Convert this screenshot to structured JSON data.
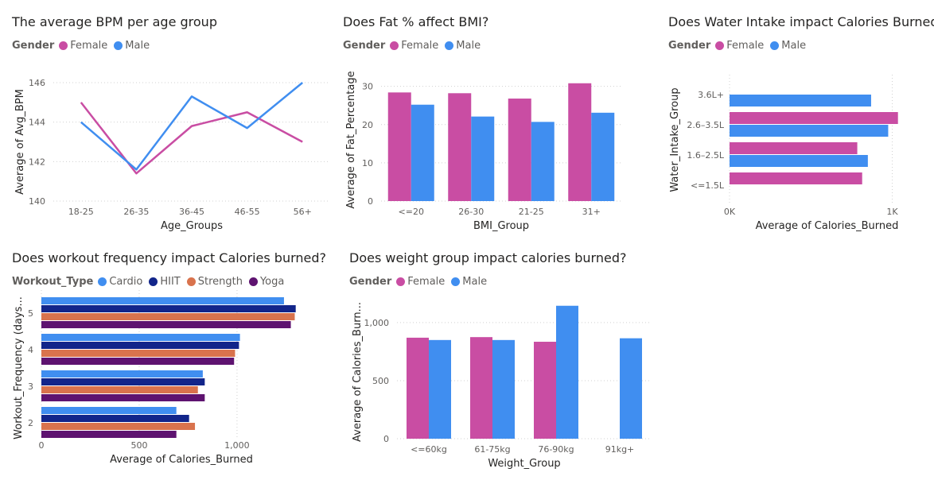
{
  "colors": {
    "female": "#c94da3",
    "male": "#408ef0",
    "cardio": "#408ef0",
    "hiit": "#12258a",
    "strength": "#d9734d",
    "yoga": "#5e1370"
  },
  "chart_data": [
    {
      "id": "bpm",
      "type": "line",
      "title": "The average BPM per age group",
      "legend": {
        "title": "Gender",
        "items": [
          {
            "name": "Female",
            "color": "#c94da3"
          },
          {
            "name": "Male",
            "color": "#408ef0"
          }
        ]
      },
      "xlabel": "Age_Groups",
      "ylabel": "Average of Avg_BPM",
      "categories": [
        "18-25",
        "26-35",
        "36-45",
        "46-55",
        "56+"
      ],
      "ylim": [
        140,
        146
      ],
      "yticks": [
        "140",
        "142",
        "144",
        "146"
      ],
      "series": [
        {
          "name": "Female",
          "values": [
            145,
            141.4,
            143.8,
            144.5,
            143
          ]
        },
        {
          "name": "Male",
          "values": [
            144,
            141.6,
            145.3,
            143.7,
            146
          ]
        }
      ]
    },
    {
      "id": "fat",
      "type": "bar",
      "title": "Does Fat % affect BMI?",
      "legend": {
        "title": "Gender",
        "items": [
          {
            "name": "Female",
            "color": "#c94da3"
          },
          {
            "name": "Male",
            "color": "#408ef0"
          }
        ]
      },
      "xlabel": "BMI_Group",
      "ylabel": "Average of Fat_Percentage",
      "categories": [
        "<=20",
        "26-30",
        "21-25",
        "31+"
      ],
      "ylim": [
        0,
        32
      ],
      "yticks": [
        "0",
        "10",
        "20",
        "30"
      ],
      "series": [
        {
          "name": "Female",
          "values": [
            28.4,
            28.2,
            26.8,
            30.8
          ]
        },
        {
          "name": "Male",
          "values": [
            25.2,
            22.1,
            20.7,
            23.1
          ]
        }
      ]
    },
    {
      "id": "water",
      "type": "bar",
      "orientation": "horizontal",
      "title": "Does Water Intake impact Calories Burned?",
      "legend": {
        "title": "Gender",
        "items": [
          {
            "name": "Female",
            "color": "#c94da3"
          },
          {
            "name": "Male",
            "color": "#408ef0"
          }
        ]
      },
      "xlabel": "Average of Calories_Burned",
      "ylabel": "Water_Intake_Group",
      "categories": [
        "3.6L+",
        "2.6–3.5L",
        "1.6–2.5L",
        "<=1.5L"
      ],
      "xlim": [
        0,
        1100
      ],
      "xticks": [
        "0K",
        "1K"
      ],
      "series": [
        {
          "name": "Female",
          "values": [
            null,
            1035,
            785,
            815
          ]
        },
        {
          "name": "Male",
          "values": [
            870,
            975,
            850,
            null
          ]
        }
      ]
    },
    {
      "id": "workout",
      "type": "bar",
      "orientation": "horizontal",
      "title": "Does workout frequency impact Calories burned?",
      "legend": {
        "title": "Workout_Type",
        "items": [
          {
            "name": "Cardio",
            "color": "#408ef0"
          },
          {
            "name": "HIIT",
            "color": "#12258a"
          },
          {
            "name": "Strength",
            "color": "#d9734d"
          },
          {
            "name": "Yoga",
            "color": "#5e1370"
          }
        ]
      },
      "xlabel": "Average of Calories_Burned",
      "ylabel": "Workout_Frequency (days...",
      "categories": [
        "5",
        "4",
        "3",
        "2"
      ],
      "xlim": [
        0,
        1350
      ],
      "xticks": [
        "0",
        "500",
        "1,000"
      ],
      "series": [
        {
          "name": "Cardio",
          "values": [
            1240,
            1015,
            825,
            690
          ]
        },
        {
          "name": "HIIT",
          "values": [
            1300,
            1010,
            835,
            755
          ]
        },
        {
          "name": "Strength",
          "values": [
            1295,
            990,
            800,
            785
          ]
        },
        {
          "name": "Yoga",
          "values": [
            1275,
            985,
            835,
            690
          ]
        }
      ]
    },
    {
      "id": "weight",
      "type": "bar",
      "title": "Does weight group impact calories burned?",
      "legend": {
        "title": "Gender",
        "items": [
          {
            "name": "Female",
            "color": "#c94da3"
          },
          {
            "name": "Male",
            "color": "#408ef0"
          }
        ]
      },
      "xlabel": "Weight_Group",
      "ylabel": "Average of Calories_Burn...",
      "categories": [
        "<=60kg",
        "61-75kg",
        "76-90kg",
        "91kg+"
      ],
      "ylim": [
        0,
        1150
      ],
      "yticks": [
        "0",
        "500",
        "1,000"
      ],
      "series": [
        {
          "name": "Female",
          "values": [
            870,
            875,
            835,
            null
          ]
        },
        {
          "name": "Male",
          "values": [
            850,
            850,
            1145,
            865
          ]
        }
      ]
    }
  ]
}
